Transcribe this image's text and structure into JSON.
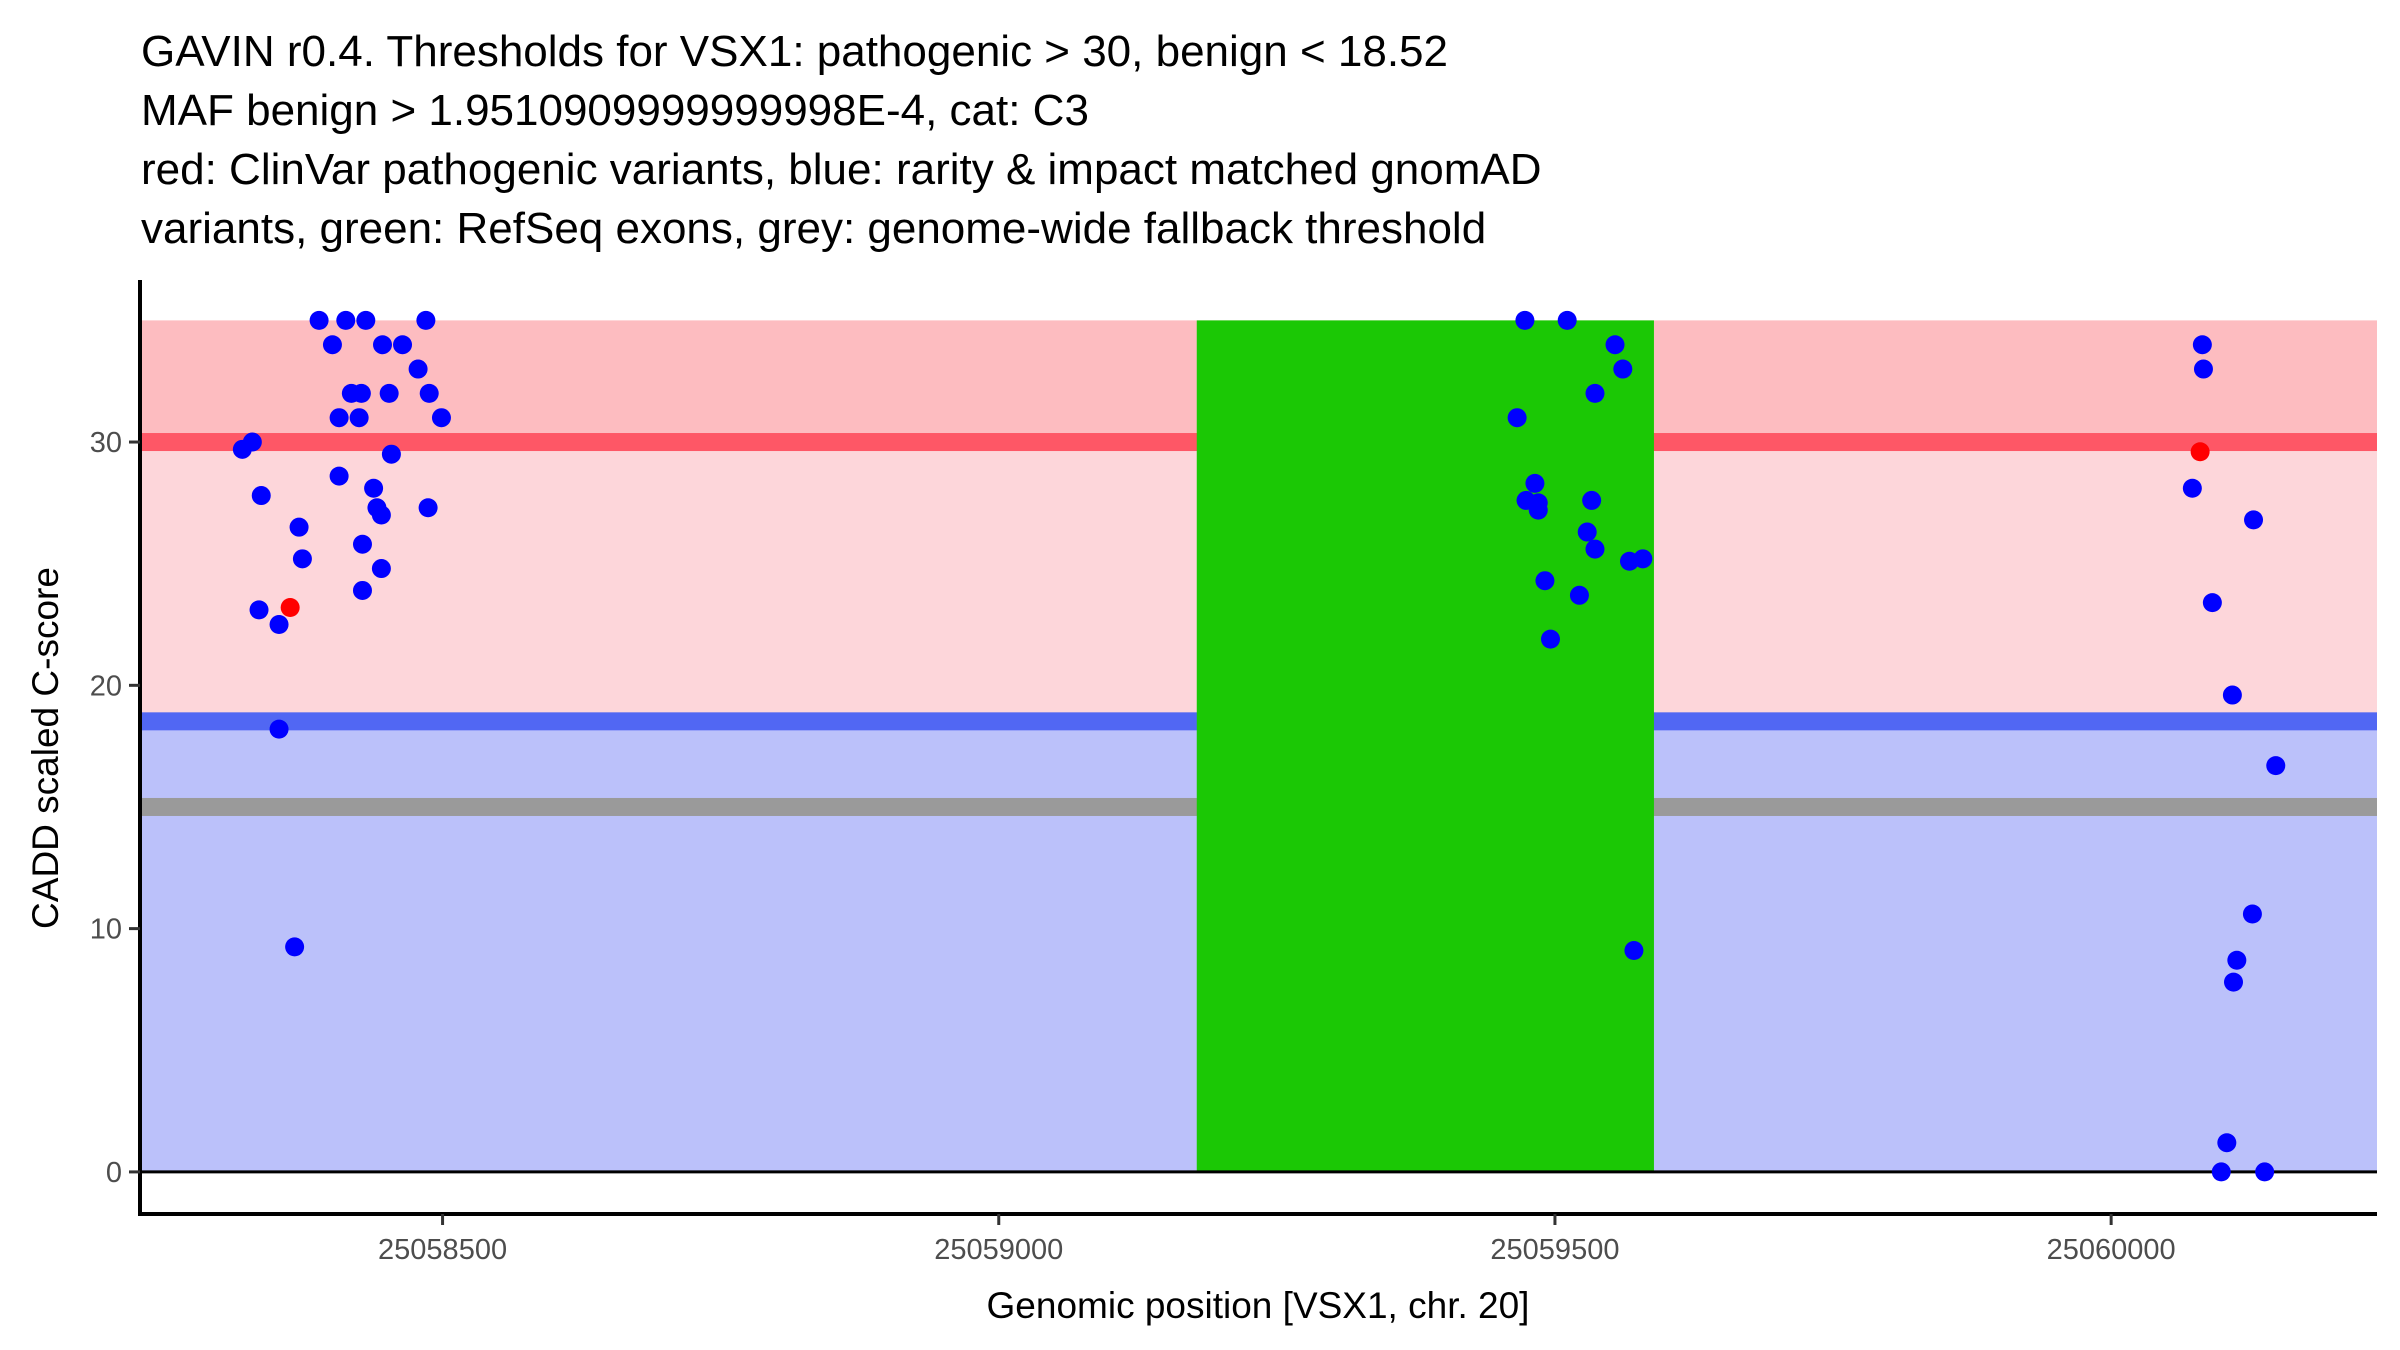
{
  "chart_data": {
    "type": "scatter",
    "title_lines": [
      "GAVIN r0.4. Thresholds for VSX1: pathogenic > 30, benign < 18.52",
      "MAF benign > 1.9510909999999998E-4, cat: C3",
      "red: ClinVar pathogenic variants, blue: rarity & impact matched gnomAD",
      "variants, green: RefSeq exons, grey: genome-wide fallback threshold"
    ],
    "xlabel": "Genomic position [VSX1, chr. 20]",
    "ylabel": "CADD scaled C-score",
    "xlim": [
      25058228,
      25060239
    ],
    "ylim": [
      -1.73,
      36.66
    ],
    "xticks": [
      25058500,
      25059000,
      25059500,
      25060000
    ],
    "xtick_labels": [
      "25058500",
      "25059000",
      "25059500",
      "25060000"
    ],
    "yticks": [
      0,
      10,
      20,
      30
    ],
    "ytick_labels": [
      "0",
      "10",
      "20",
      "30"
    ],
    "grid": false,
    "legend": "none",
    "colors": {
      "pathogenic_band": "#fdbcc0",
      "mid_band": "#fdd6da",
      "benign_band": "#bbc1fa",
      "pathogenic_line": "#fe5766",
      "benign_line": "#5167f3",
      "fallback_line": "#9a9a9a",
      "exon": "#1bc805",
      "gnomad_point": "#0000ff",
      "clinvar_point": "#ff0000",
      "zero_line": "#000000"
    },
    "bands": [
      {
        "name": "pathogenic-zone",
        "ymin": 30,
        "ymax": 35,
        "color_key": "pathogenic_band"
      },
      {
        "name": "uncertain-zone",
        "ymin": 18.52,
        "ymax": 30,
        "color_key": "mid_band"
      },
      {
        "name": "benign-zone",
        "ymin": 0,
        "ymax": 18.52,
        "color_key": "benign_band"
      }
    ],
    "threshold_lines": [
      {
        "name": "pathogenic-threshold",
        "y": 30,
        "color_key": "pathogenic_line"
      },
      {
        "name": "benign-threshold",
        "y": 18.52,
        "color_key": "benign_line"
      },
      {
        "name": "fallback-threshold",
        "y": 15,
        "color_key": "fallback_line"
      }
    ],
    "exons": [
      {
        "start": 25059178,
        "end": 25059589,
        "ymin": 0,
        "ymax": 35
      }
    ],
    "series": [
      {
        "name": "rarity & impact matched gnomAD variants",
        "color_key": "gnomad_point",
        "points": [
          [
            25058389,
            35.0
          ],
          [
            25058413,
            35.0
          ],
          [
            25058431,
            35.0
          ],
          [
            25058485,
            35.0
          ],
          [
            25058401,
            34.0
          ],
          [
            25058446,
            34.0
          ],
          [
            25058464,
            34.0
          ],
          [
            25058478,
            33.0
          ],
          [
            25058418,
            32.0
          ],
          [
            25058427,
            32.0
          ],
          [
            25058452,
            32.0
          ],
          [
            25058488,
            32.0
          ],
          [
            25058407,
            31.0
          ],
          [
            25058425,
            31.0
          ],
          [
            25058499,
            31.0
          ],
          [
            25058329,
            30.0
          ],
          [
            25058320,
            29.7
          ],
          [
            25058454,
            29.5
          ],
          [
            25058407,
            28.6
          ],
          [
            25058438,
            28.1
          ],
          [
            25058337,
            27.8
          ],
          [
            25058441,
            27.3
          ],
          [
            25058445,
            27.0
          ],
          [
            25058487,
            27.3
          ],
          [
            25058371,
            26.5
          ],
          [
            25058428,
            25.8
          ],
          [
            25058374,
            25.2
          ],
          [
            25058445,
            24.8
          ],
          [
            25058428,
            23.9
          ],
          [
            25058335,
            23.1
          ],
          [
            25058353,
            22.5
          ],
          [
            25058353,
            18.2
          ],
          [
            25058367,
            9.25
          ],
          [
            25059473,
            35.0
          ],
          [
            25059511,
            35.0
          ],
          [
            25059554,
            34.0
          ],
          [
            25059561,
            33.0
          ],
          [
            25059536,
            32.0
          ],
          [
            25059466,
            31.0
          ],
          [
            25059482,
            28.3
          ],
          [
            25059474,
            27.6
          ],
          [
            25059485,
            27.5
          ],
          [
            25059485,
            27.2
          ],
          [
            25059533,
            27.6
          ],
          [
            25059529,
            26.3
          ],
          [
            25059536,
            25.6
          ],
          [
            25059567,
            25.1
          ],
          [
            25059579,
            25.2
          ],
          [
            25059491,
            24.3
          ],
          [
            25059522,
            23.7
          ],
          [
            25059496,
            21.9
          ],
          [
            25059571,
            9.1
          ],
          [
            25060082,
            34.0
          ],
          [
            25060083,
            33.0
          ],
          [
            25060073,
            28.1
          ],
          [
            25060128,
            26.8
          ],
          [
            25060091,
            23.4
          ],
          [
            25060109,
            19.6
          ],
          [
            25060148,
            16.7
          ],
          [
            25060127,
            10.6
          ],
          [
            25060113,
            8.7
          ],
          [
            25060110,
            7.8
          ],
          [
            25060104,
            1.2
          ],
          [
            25060099,
            0.0
          ],
          [
            25060138,
            0.0
          ]
        ]
      },
      {
        "name": "ClinVar pathogenic variants",
        "color_key": "clinvar_point",
        "points": [
          [
            25058363,
            23.2
          ],
          [
            25060080,
            29.6
          ]
        ]
      }
    ]
  }
}
